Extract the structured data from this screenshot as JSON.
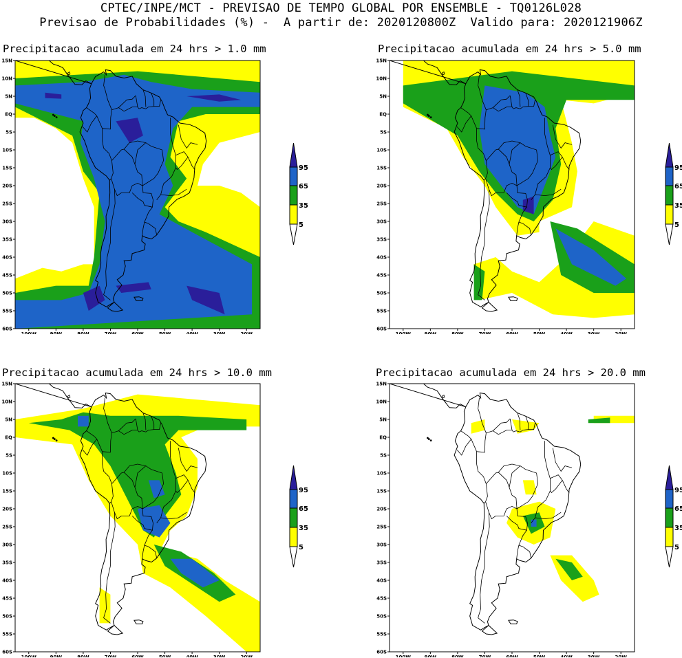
{
  "header": {
    "line1": "CPTEC/INPE/MCT - PREVISAO DE TEMPO GLOBAL POR ENSEMBLE - TQ0126L028",
    "line2": "Previsao de Probabilidades (%) -  A partir de: 2020120800Z  Valido para: 2020121906Z"
  },
  "colors": {
    "yellow": "#ffff00",
    "green": "#1aa01a",
    "blue": "#1e64c8",
    "darkblue": "#2a1e9a",
    "white": "#ffffff"
  },
  "axis": {
    "lat_labels": [
      "15N",
      "10N",
      "5N",
      "EQ",
      "5S",
      "10S",
      "15S",
      "20S",
      "25S",
      "30S",
      "35S",
      "40S",
      "45S",
      "50S",
      "55S",
      "60S"
    ],
    "lon_labels": [
      "100W",
      "90W",
      "80W",
      "70W",
      "60W",
      "50W",
      "40W",
      "30W",
      "20W"
    ]
  },
  "colorbar": {
    "levels": [
      "95",
      "65",
      "35",
      "5"
    ]
  },
  "panels": [
    {
      "title": "Precipitacao acumulada em 24 hrs > 1.0 mm",
      "threshold_mm": 1.0
    },
    {
      "title": "Precipitacao acumulada em 24 hrs > 5.0 mm",
      "threshold_mm": 5.0
    },
    {
      "title": "Precipitacao acumulada em 24 hrs > 10.0 mm",
      "threshold_mm": 10.0
    },
    {
      "title": "Precipitacao acumulada em 24 hrs > 20.0 mm",
      "threshold_mm": 20.0
    }
  ]
}
